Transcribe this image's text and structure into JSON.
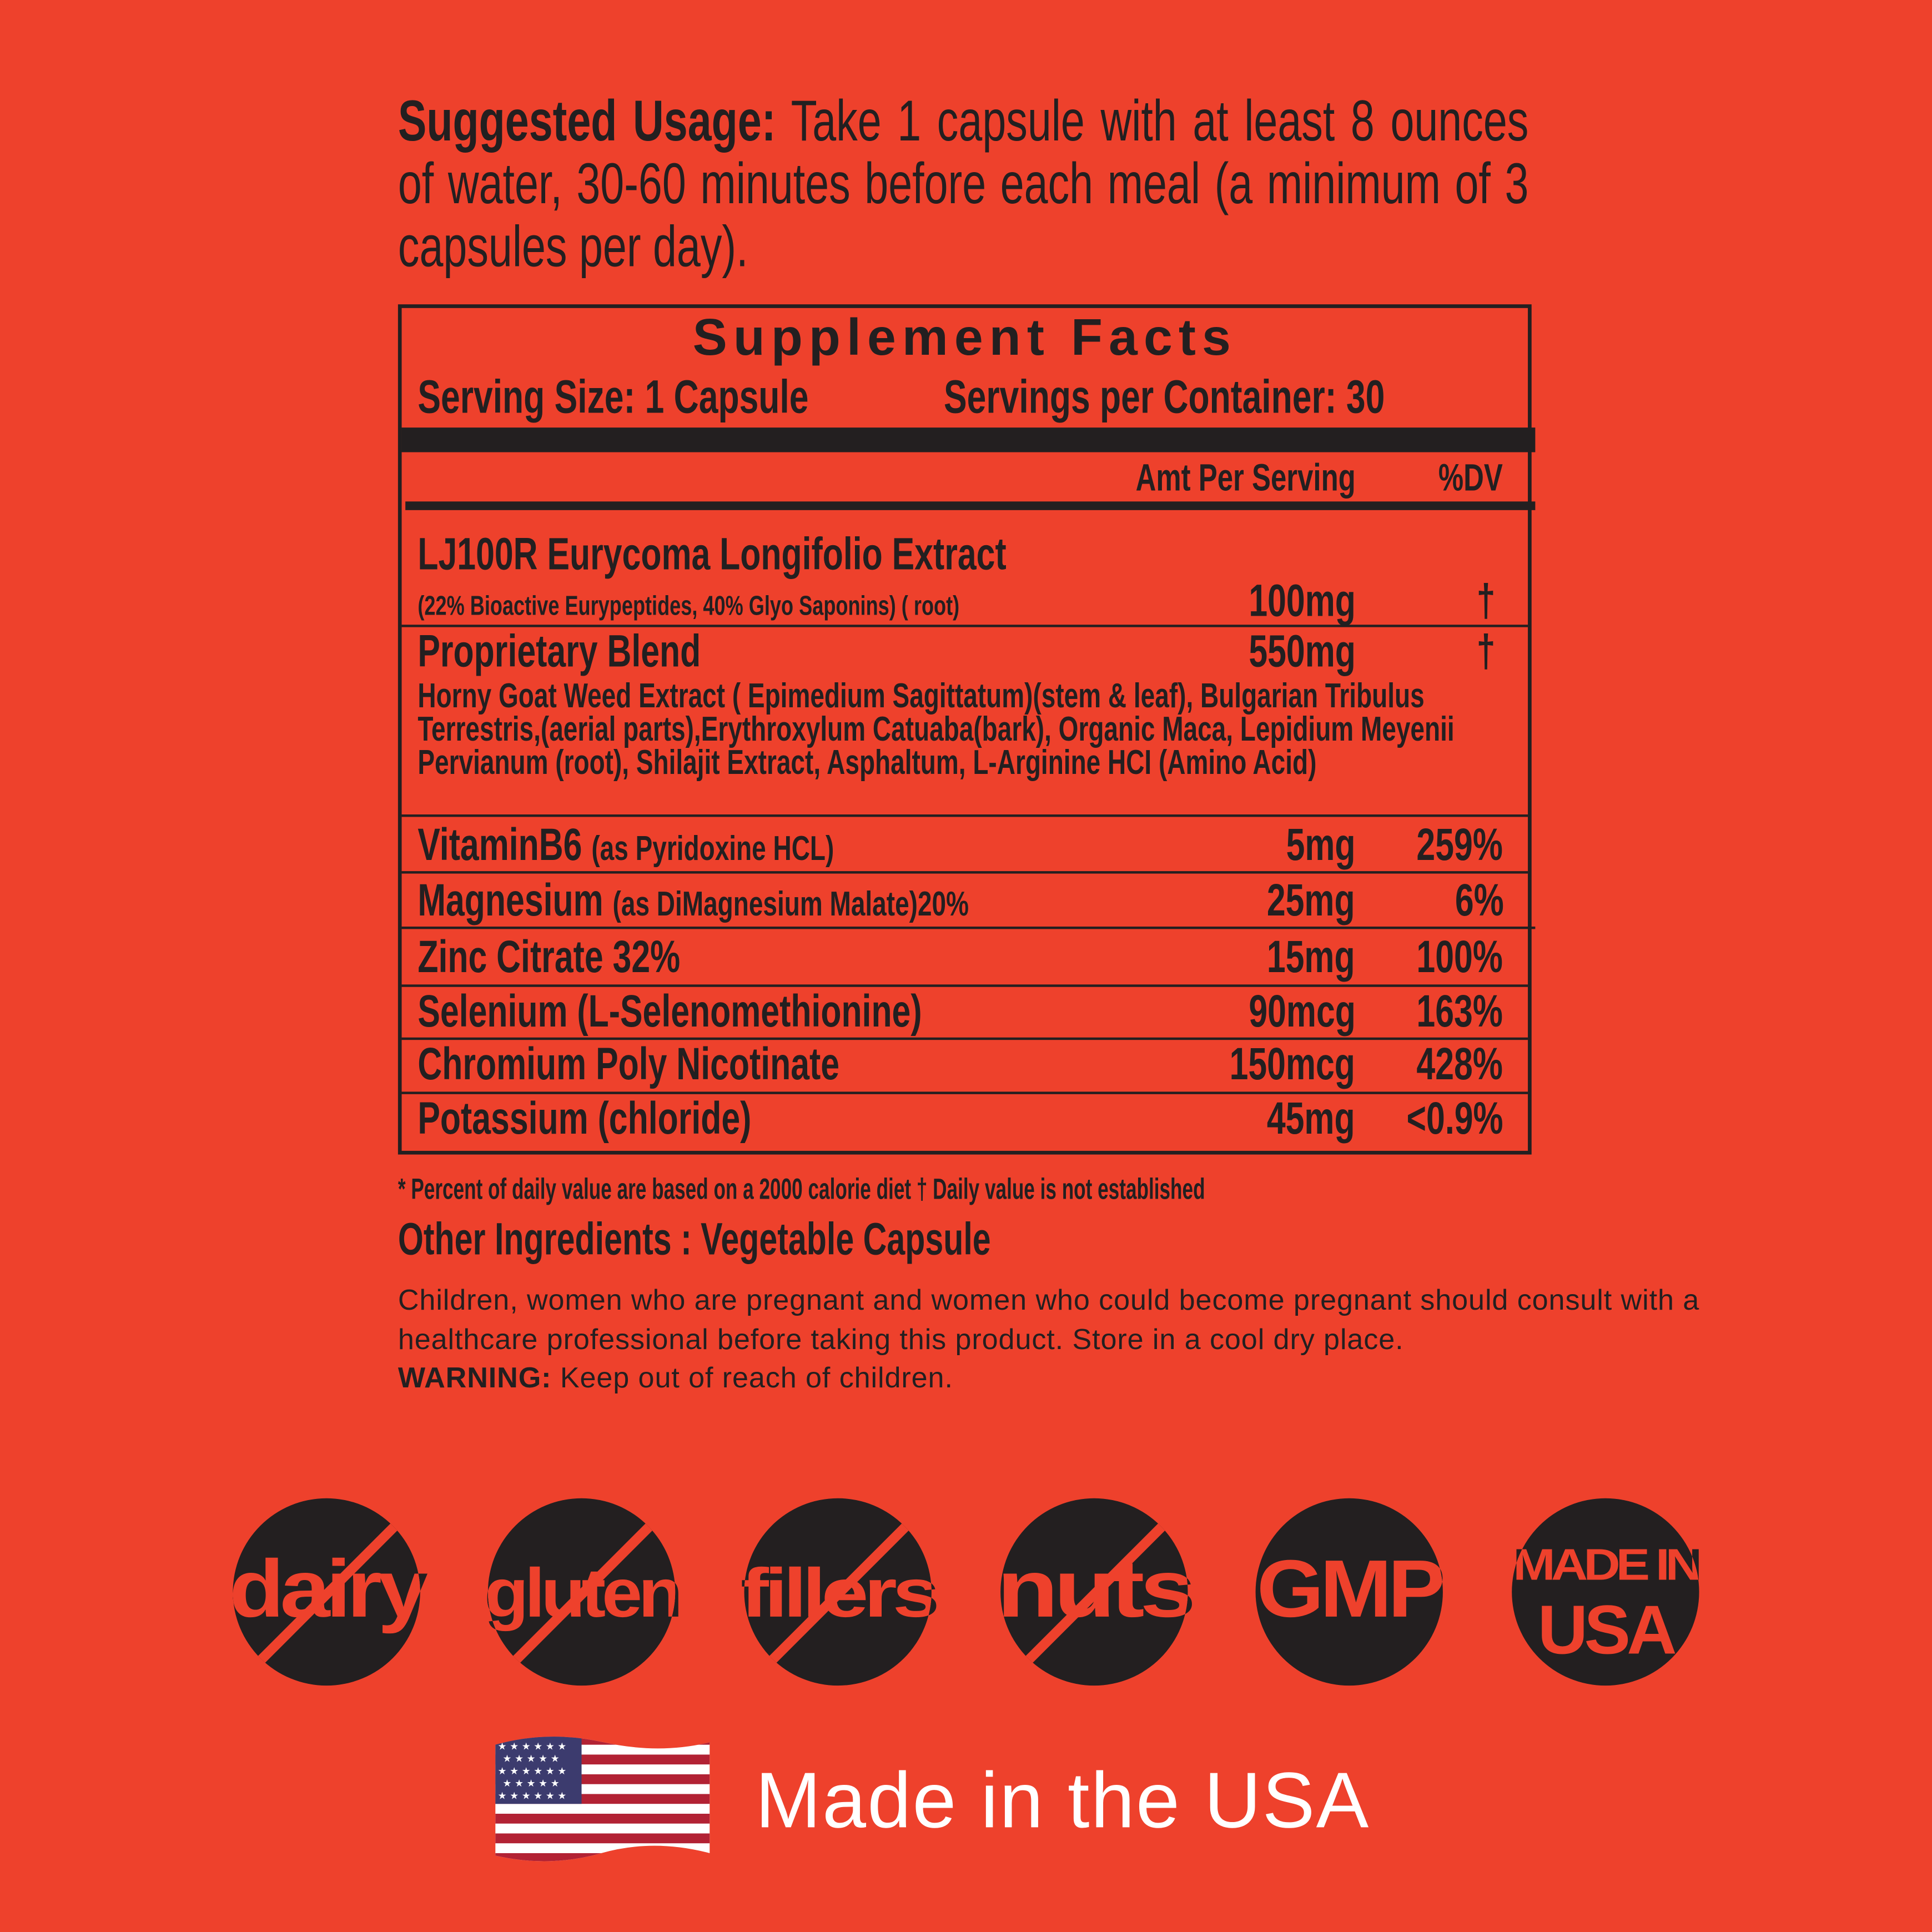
{
  "usage": {
    "label": "Suggested Usage:",
    "text": "Take 1 capsule with at least 8 ounces of water, 30-60 minutes before each meal (a minimum of 3 capsules per day)."
  },
  "facts": {
    "title": "Supplement Facts",
    "serving_size": "Serving Size: 1 Capsule",
    "servings_per_container": "Servings per Container: 30",
    "col_amt": "Amt Per Serving",
    "col_dv": "%DV",
    "rows": [
      {
        "name": "LJ100R Eurycoma Longifolio Extract",
        "detail": "(22% Bioactive Eurypeptides, 40% Glyo Saponins) ( root)",
        "amount": "100mg",
        "dv": "†"
      },
      {
        "name": "Proprietary Blend",
        "detail": "Horny Goat Weed Extract ( Epimedium Sagittatum)(stem & leaf), Bulgarian Tribulus Terrestris,(aerial parts),Erythroxylum Catuaba(bark), Organic Maca, Lepidium Meyenii Pervianum (root), Shilajit Extract, Asphaltum, L-Arginine HCI (Amino Acid)",
        "amount": "550mg",
        "dv": "†"
      },
      {
        "name": "VitaminB6",
        "detail": "(as Pyridoxine HCL)",
        "amount": "5mg",
        "dv": "259%"
      },
      {
        "name": "Magnesium",
        "detail": "(as DiMagnesium Malate)20%",
        "amount": "25mg",
        "dv": "6%"
      },
      {
        "name": "Zinc Citrate 32%",
        "detail": "",
        "amount": "15mg",
        "dv": "100%"
      },
      {
        "name": "Selenium (L-Selenomethionine)",
        "detail": "",
        "amount": "90mcg",
        "dv": "163%"
      },
      {
        "name": "Chromium Poly Nicotinate",
        "detail": "",
        "amount": "150mcg",
        "dv": "428%"
      },
      {
        "name": "Potassium (chloride)",
        "detail": "",
        "amount": "45mg",
        "dv": "<0.9%"
      }
    ]
  },
  "footnote": "* Percent of daily value are based on a 2000 calorie diet † Daily value is not established",
  "other_ingredients": "Other Ingredients : Vegetable Capsule",
  "care": "Children, women who are pregnant and women who could become pregnant should consult with a healthcare professional before taking this product. Store in a cool dry place.",
  "warning": {
    "label": "WARNING:",
    "text": "Keep out of reach of children."
  },
  "badges": [
    {
      "text": "dairy",
      "slash": true
    },
    {
      "text": "gluten",
      "slash": true
    },
    {
      "text": "fillers",
      "slash": true
    },
    {
      "text": "nuts",
      "slash": true
    },
    {
      "text": "GMP",
      "slash": false
    },
    {
      "text": "MADE IN",
      "text2": "USA",
      "slash": false
    }
  ],
  "made_in": "Made in the USA",
  "colors": {
    "background": "#ee412c",
    "ink": "#231f20",
    "white": "#ffffff"
  }
}
